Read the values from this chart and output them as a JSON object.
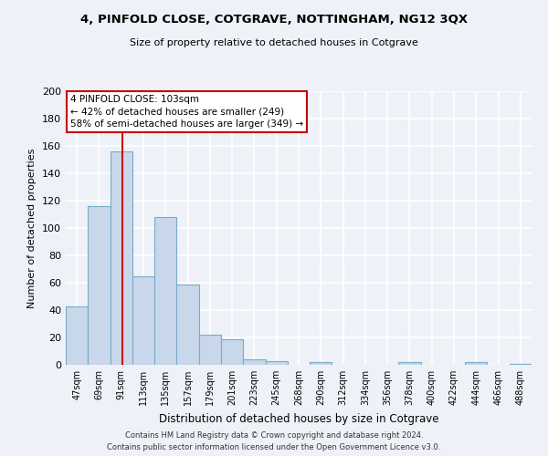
{
  "title": "4, PINFOLD CLOSE, COTGRAVE, NOTTINGHAM, NG12 3QX",
  "subtitle": "Size of property relative to detached houses in Cotgrave",
  "xlabel": "Distribution of detached houses by size in Cotgrave",
  "ylabel": "Number of detached properties",
  "bar_color": "#c8d8ea",
  "bar_edge_color": "#7aaac8",
  "background_color": "#eef2f8",
  "grid_color": "#d8dfe8",
  "bins": [
    "47sqm",
    "69sqm",
    "91sqm",
    "113sqm",
    "135sqm",
    "157sqm",
    "179sqm",
    "201sqm",
    "223sqm",
    "245sqm",
    "268sqm",
    "290sqm",
    "312sqm",
    "334sqm",
    "356sqm",
    "378sqm",
    "400sqm",
    "422sqm",
    "444sqm",
    "466sqm",
    "488sqm"
  ],
  "values": [
    43,
    116,
    156,
    65,
    108,
    59,
    22,
    19,
    4,
    3,
    0,
    2,
    0,
    0,
    0,
    2,
    0,
    0,
    2,
    0,
    1
  ],
  "vline_color": "#cc0000",
  "ylim": [
    0,
    200
  ],
  "yticks": [
    0,
    20,
    40,
    60,
    80,
    100,
    120,
    140,
    160,
    180,
    200
  ],
  "annotation_line1": "4 PINFOLD CLOSE: 103sqm",
  "annotation_line2": "← 42% of detached houses are smaller (249)",
  "annotation_line3": "58% of semi-detached houses are larger (349) →",
  "footer_line1": "Contains HM Land Registry data © Crown copyright and database right 2024.",
  "footer_line2": "Contains public sector information licensed under the Open Government Licence v3.0."
}
